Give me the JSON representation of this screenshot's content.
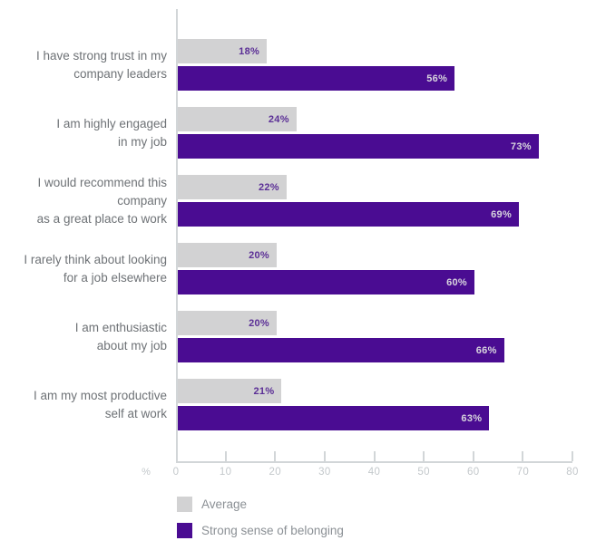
{
  "chart_data": {
    "type": "bar",
    "orientation": "horizontal",
    "title": "",
    "xlabel": "%",
    "ylabel": "",
    "xlim": [
      0,
      80
    ],
    "x_ticks": [
      0,
      10,
      20,
      30,
      40,
      50,
      60,
      70,
      80
    ],
    "grid": false,
    "legend_position": "bottom-left",
    "value_suffix": "%",
    "categories": [
      "I have strong trust in my\ncompany leaders",
      "I am highly engaged\nin my job",
      "I would recommend this company\nas a great place to work",
      "I rarely think about looking\nfor a job elsewhere",
      "I am enthusiastic\nabout my job",
      "I am my most productive\nself at work"
    ],
    "series": [
      {
        "name": "Average",
        "color": "#d2d2d3",
        "value_label_color": "#5b2f96",
        "values": [
          18,
          24,
          22,
          20,
          20,
          21
        ]
      },
      {
        "name": "Strong sense of belonging",
        "color": "#4a0c92",
        "value_label_color": "#d8d5de",
        "values": [
          56,
          73,
          69,
          60,
          66,
          63
        ]
      }
    ]
  },
  "axis_colors": {
    "line": "#d2d6d8",
    "tick_text": "#c3c8cb"
  },
  "text_colors": {
    "category_label": "#6e7276",
    "legend_label": "#8b9095"
  }
}
